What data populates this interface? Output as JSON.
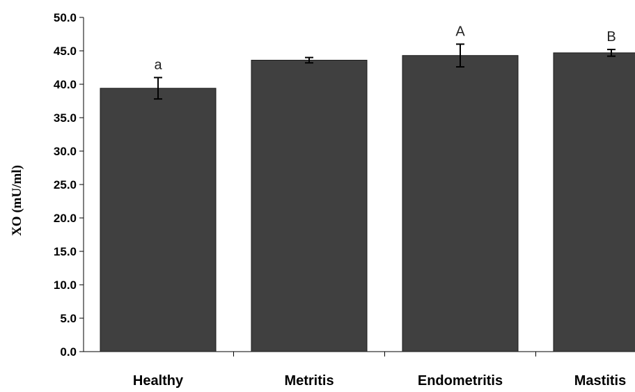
{
  "chart_data": {
    "type": "bar",
    "title": "",
    "xlabel": "",
    "ylabel": "XO (mU/ml)",
    "ylim": [
      0,
      50
    ],
    "yticks": [
      "0.0",
      "5.0",
      "10.0",
      "15.0",
      "20.0",
      "25.0",
      "30.0",
      "35.0",
      "40.0",
      "45.0",
      "50.0"
    ],
    "ytick_values": [
      0,
      5,
      10,
      15,
      20,
      25,
      30,
      35,
      40,
      45,
      50
    ],
    "categories": [
      "Healthy",
      "Metritis",
      "Endometritis",
      "Mastitis"
    ],
    "values": [
      39.4,
      43.6,
      44.3,
      44.7
    ],
    "error": [
      1.6,
      0.4,
      1.7,
      0.5
    ],
    "annotations": [
      "a",
      "",
      "A",
      "B"
    ],
    "grid": false,
    "legend": "none",
    "colors": {
      "bar": "#404040",
      "bar_edge": "#1a1a1a",
      "axis": "#000000"
    }
  }
}
